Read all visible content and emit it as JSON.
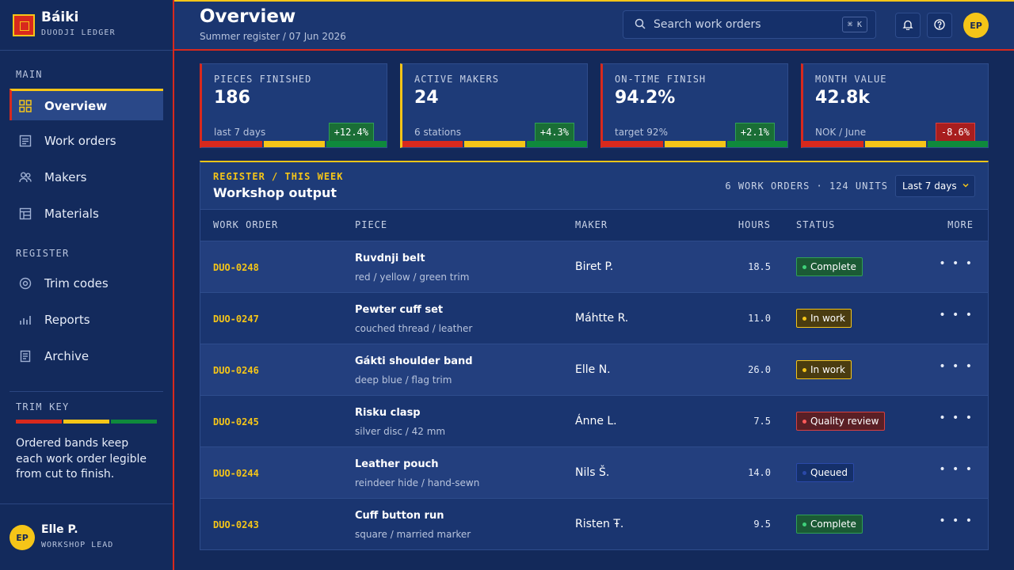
{
  "brand": {
    "name": "Báiki",
    "subtitle": "DUODJI LEDGER"
  },
  "sidebar": {
    "main_label": "MAIN",
    "main_items": [
      {
        "label": "Overview",
        "icon": "grid-icon",
        "active": true
      },
      {
        "label": "Work orders",
        "icon": "list-icon"
      },
      {
        "label": "Makers",
        "icon": "users-icon"
      },
      {
        "label": "Materials",
        "icon": "table-icon"
      }
    ],
    "register_label": "REGISTER",
    "register_items": [
      {
        "label": "Trim codes",
        "icon": "target-icon"
      },
      {
        "label": "Reports",
        "icon": "bar-chart-icon"
      },
      {
        "label": "Archive",
        "icon": "document-icon"
      }
    ],
    "trim_key_label": "TRIM KEY",
    "trim_key_text": "Ordered bands keep each work order legible from cut to finish.",
    "user": {
      "initials": "EP",
      "name": "Elle P.",
      "role": "WORKSHOP LEAD"
    }
  },
  "header": {
    "title": "Overview",
    "subtitle": "Summer register / 07 Jun 2026",
    "search_placeholder": "Search work orders",
    "search_shortcut": "⌘ K",
    "avatar_initials": "EP"
  },
  "colors": {
    "red": "#d8291d",
    "yellow": "#f5c518",
    "green": "#0f8a3c",
    "navy": "#13295a"
  },
  "kpis": [
    {
      "label": "PIECES FINISHED",
      "value": "186",
      "sub": "last 7 days",
      "delta": "+12.4%",
      "trend": "up"
    },
    {
      "label": "ACTIVE MAKERS",
      "value": "24",
      "sub": "6 stations",
      "delta": "+4.3%",
      "trend": "up"
    },
    {
      "label": "ON-TIME FINISH",
      "value": "94.2%",
      "sub": "target 92%",
      "delta": "+2.1%",
      "trend": "up"
    },
    {
      "label": "MONTH VALUE",
      "value": "42.8k",
      "sub": "NOK / June",
      "delta": "-8.6%",
      "trend": "down"
    }
  ],
  "panel": {
    "kicker": "REGISTER / THIS WEEK",
    "title": "Workshop output",
    "count": "6 WORK ORDERS · 124 UNITS",
    "range": "Last 7 days",
    "columns": [
      "WORK ORDER",
      "PIECE",
      "MAKER",
      "HOURS",
      "STATUS",
      "MORE"
    ],
    "rows": [
      {
        "id": "DUO-0248",
        "piece": "Ruvdnji belt",
        "detail": "red / yellow / green trim",
        "maker": "Biret P.",
        "hours": "18.5",
        "status": "Complete"
      },
      {
        "id": "DUO-0247",
        "piece": "Pewter cuff set",
        "detail": "couched thread / leather",
        "maker": "Máhtte R.",
        "hours": "11.0",
        "status": "In work"
      },
      {
        "id": "DUO-0246",
        "piece": "Gákti shoulder band",
        "detail": "deep blue / flag trim",
        "maker": "Elle N.",
        "hours": "26.0",
        "status": "In work"
      },
      {
        "id": "DUO-0245",
        "piece": "Risku clasp",
        "detail": "silver disc / 42 mm",
        "maker": "Ánne L.",
        "hours": "7.5",
        "status": "Quality review"
      },
      {
        "id": "DUO-0244",
        "piece": "Leather pouch",
        "detail": "reindeer hide / hand-sewn",
        "maker": "Nils Š.",
        "hours": "14.0",
        "status": "Queued"
      },
      {
        "id": "DUO-0243",
        "piece": "Cuff button run",
        "detail": "square / married marker",
        "maker": "Risten Ŧ.",
        "hours": "9.5",
        "status": "Complete"
      }
    ]
  }
}
